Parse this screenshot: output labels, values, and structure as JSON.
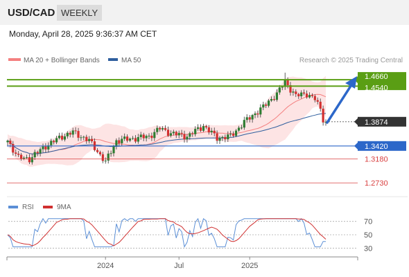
{
  "header": {
    "pair": "USD/CAD",
    "timeframe": "WEEKLY",
    "datetime": "Monday, April 28, 2025 9:36:37 AM CET"
  },
  "legend": {
    "ma20_bb": "MA 20 + Bollinger Bands",
    "ma50": "MA 50",
    "copyright": "Research © 2025 Trading Central"
  },
  "rsi_legend": {
    "rsi": "RSI",
    "ma9": "9MA"
  },
  "colors": {
    "up": "#2e7d32",
    "down": "#d32f2f",
    "ma20": "#f48080",
    "ma50": "#2f5f9e",
    "bb_fill": "#fde4e4",
    "resistance": "#5a9e14",
    "support": "#2c67c9",
    "target": "#d94040",
    "rsi_line": "#5b8fd6",
    "rsi_ma": "#d03030",
    "arrow": "#2c67c9"
  },
  "chart_data": [
    {
      "type": "candlestick",
      "ylim": [
        1.255,
        1.4856
      ],
      "x_ticks": [
        "2024",
        "Jul",
        "2025"
      ],
      "levels": [
        {
          "label": "1.4660",
          "value": 1.466,
          "kind": "resistance"
        },
        {
          "label": "1.4540",
          "value": 1.454,
          "kind": "resistance"
        },
        {
          "label": "1.3874",
          "value": 1.3874,
          "kind": "current"
        },
        {
          "label": "1.3420",
          "value": 1.342,
          "kind": "support"
        },
        {
          "label": "1.3180",
          "value": 1.318,
          "kind": "target"
        },
        {
          "label": "1.2730",
          "value": 1.273,
          "kind": "target"
        }
      ],
      "series": [
        {
          "name": "MA 20 + Bollinger Bands"
        },
        {
          "name": "MA 50"
        }
      ]
    },
    {
      "type": "line",
      "ylim": [
        20,
        80
      ],
      "y_ticks": [
        70,
        50,
        30
      ],
      "series": [
        {
          "name": "RSI"
        },
        {
          "name": "9MA"
        }
      ]
    }
  ]
}
